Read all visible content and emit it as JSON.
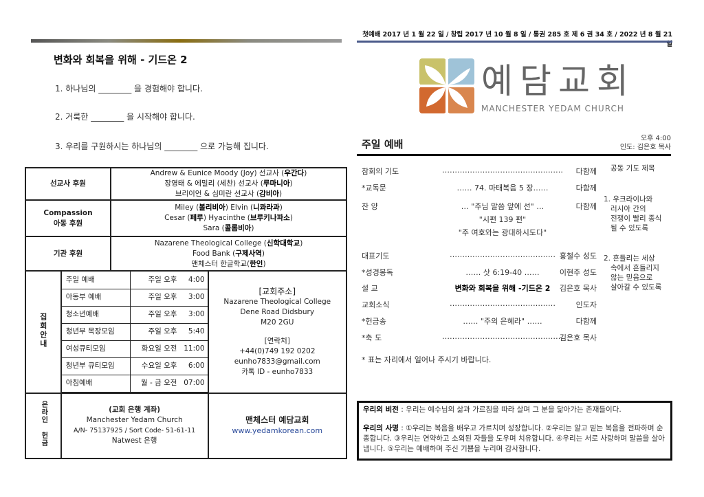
{
  "sermon": {
    "title": "변화와 회복을 위해 - 기드온 2",
    "questions": [
      "1.   하나님의 ________ 을 경험해야 합니다.",
      "2.   거룩한 ________ 을 시작해야 합니다.",
      "3.   우리를 구원하시는 하나님의 ________ 으로 가능해 집니다."
    ]
  },
  "support": [
    {
      "label": [
        "선교사 후원"
      ],
      "lines": [
        [
          "Andrew & Eunice Moody (Joy) 선교사 (",
          "우간다",
          ")"
        ],
        [
          "장영태 & 에밀리 (세찬) 선교사 (",
          "루마니아",
          ")"
        ],
        [
          "브리이언 & 심미란 선교사 (",
          "감비아",
          ")"
        ]
      ]
    },
    {
      "label": [
        "Compassion",
        "아동 후원"
      ],
      "lines": [
        [
          "Miley (",
          "볼리비아",
          ")   Elvin (",
          "니콰라과",
          ")"
        ],
        [
          "Cesar (",
          "페루",
          ") Hyacinthe (",
          "브루키나파소",
          ")"
        ],
        [
          "Sara (",
          "콜롬비아",
          ")"
        ]
      ]
    },
    {
      "label": [
        "기관 후원"
      ],
      "lines": [
        [
          "Nazarene Theological College (",
          "신학대학교",
          ")"
        ],
        [
          "Food Bank (",
          "구제사역",
          ")"
        ],
        [
          "맨체스터 한글학교(",
          "한인",
          ")"
        ]
      ]
    }
  ],
  "meetings": {
    "label": "집회안내",
    "rows": [
      [
        "주일 예배",
        "주일 오후",
        "4:00"
      ],
      [
        "아동부 예배",
        "주일 오후",
        "3:00"
      ],
      [
        "청소년예배",
        "주일 오후",
        "3:00"
      ],
      [
        "청년부 목장모임",
        "주일 오후",
        "5:40"
      ],
      [
        "여성큐티모임",
        "화요일 오전",
        "11:00"
      ],
      [
        "청년부 큐티모임",
        "수요일 오후",
        "6:00"
      ],
      [
        "아침예배",
        "월 - 금 오전",
        "07:00"
      ]
    ],
    "address_head": "[교회주소]",
    "address": [
      "Nazarene Theological College",
      "Dene Road Didsbury",
      "M20 2GU"
    ],
    "contact_head": "[연락처]",
    "contact": [
      "+44(0)749 192 0202",
      "eunho7833@gmail.com",
      "카톡 ID - eunho7833"
    ]
  },
  "offering": {
    "label": "온라인 헌금",
    "bank_head": "(교회 은행 계좌)",
    "bank": [
      "Manchester Yedam Church",
      "A/N- 75137925 / Sort Code- 51-61-11",
      "Natwest 은행"
    ],
    "church": "맨체스터 예담교회",
    "website": "www.yedamkorean.com",
    "link_color": "#2a4a9a"
  },
  "header": "첫예배 2017 년 1 월 22 일 /  창립 2017 년 10 월 8 일 /  통권 285 호  제 6 권 34 호 /  2022 년 8 월 21 일",
  "logo": {
    "name": "예담교회",
    "sub": "MANCHESTER YEDAM CHURCH",
    "colors": [
      "#c9c26a",
      "#9fc3d8",
      "#d2692f",
      "#d9864e"
    ]
  },
  "worship": {
    "title": "주일 예배",
    "time": "오후 4:00",
    "leader": "인도: 김은호 목사",
    "rows": [
      {
        "l": "참회의 기도",
        "m": "…………………………………………",
        "r": "다함께"
      },
      {
        "l": "*교독문",
        "m": "…… 74. 마태복음 5 장……",
        "r": "다함께"
      },
      {
        "l": "찬 양",
        "m": "… \"주님 말씀 앞에 선\" …",
        "r": "다함께"
      },
      {
        "l": "",
        "m": "\"시편 139 편\"",
        "r": ""
      },
      {
        "l": "",
        "m": "\"주 여호와는 광대하시도다\"",
        "r": ""
      },
      {
        "l": "대표기도",
        "m": "……………………………………",
        "r": "홍철수 성도"
      },
      {
        "l": "*성경봉독",
        "m": "…… 삿 6:19-40 ……",
        "r": "이현주 성도"
      },
      {
        "l": "설 교",
        "m": "변화와 회복을 위해 -기드온 2",
        "r": "김은호 목사"
      },
      {
        "l": "교회소식",
        "m": "……………………………………",
        "r": "인도자"
      },
      {
        "l": "*헌금송",
        "m": "…… \"주의 은혜라\" ……",
        "r": "다함께"
      },
      {
        "l": "*축 도",
        "m": "…………………………………………",
        "r": "김은호 목사"
      }
    ],
    "note": "* 표는 자리에서 일어나 주시기 바랍니다.",
    "prayer_title": "공동 기도 제목",
    "prayers": [
      [
        "1. 우크라이나와",
        "러시아 간의",
        "전쟁이 빨리 종식",
        "될 수 있도록"
      ],
      [
        "2. 흔들리는 세상",
        "속에서 흔들리지",
        "않는 믿음으로",
        "살아갈 수 있도록"
      ]
    ]
  },
  "vision": {
    "label": "우리의 비전",
    "text": " : 우리는 예수님의 삶과 가르침을 따라 살며 그 분을 닮아가는 존재들이다."
  },
  "mission": {
    "label": "우리의 사명",
    "text": " : ①우리는 복음을 배우고 가르치며 성장합니다.  ②우리는 알고 믿는 복음을 전파하며 순종합니다.  ③우리는 연약하고 소외된 자들을 도우며 치유합니다.  ④우리는 서로 사랑하며 말씀을 살아냅니다.  ⑤우리는 예배하며 주신 기쁨을 누리며 감사합니다."
  }
}
